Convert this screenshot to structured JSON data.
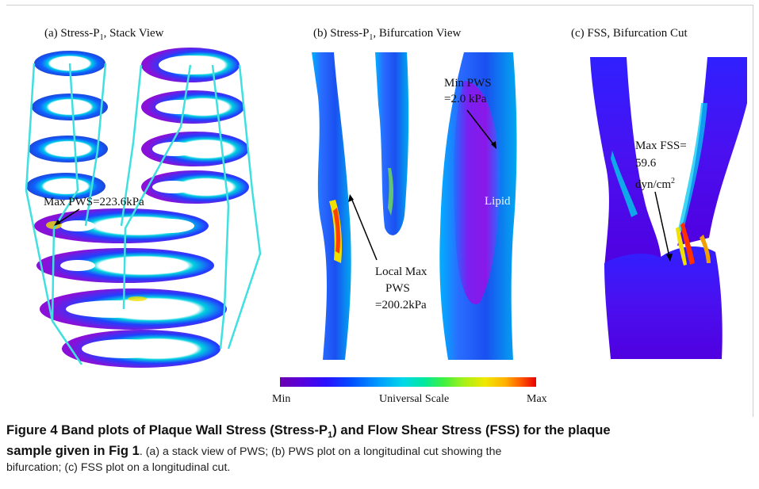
{
  "figure": {
    "panels": {
      "a": {
        "title_pre": "(a) Stress-P",
        "title_sub": "1",
        "title_post": ", Stack View"
      },
      "b": {
        "title_pre": "(b) Stress-P",
        "title_sub": "1",
        "title_post": ", Bifurcation View"
      },
      "c": {
        "title": "(c) FSS, Bifurcation Cut"
      }
    },
    "annotations": {
      "max_pws": "Max PWS=223.6kPa",
      "min_pws_line1": "Min PWS",
      "min_pws_line2": "=2.0 kPa",
      "lipid": "Lipid",
      "local_max_line1": "Local Max",
      "local_max_line2": "PWS",
      "local_max_line3": "=200.2kPa",
      "max_fss_line1": "Max FSS=",
      "max_fss_line2": "59.6",
      "max_fss_line3_pre": "dyn/cm",
      "max_fss_line3_sup": "2"
    },
    "scale": {
      "min": "Min",
      "center": "Universal Scale",
      "max": "Max"
    }
  },
  "caption": {
    "bold_1": "Figure 4 Band plots of Plaque Wall Stress (Stress-P",
    "bold_sub": "1",
    "bold_2": ") and Flow Shear Stress (FSS) for the plaque",
    "bold_3": "sample given in Fig 1",
    "text_1": ". (a) a stack view of PWS; (b) PWS plot on a longitudinal cut showing the",
    "text_2": "bifurcation; (c) FSS plot on a longitudinal cut."
  }
}
